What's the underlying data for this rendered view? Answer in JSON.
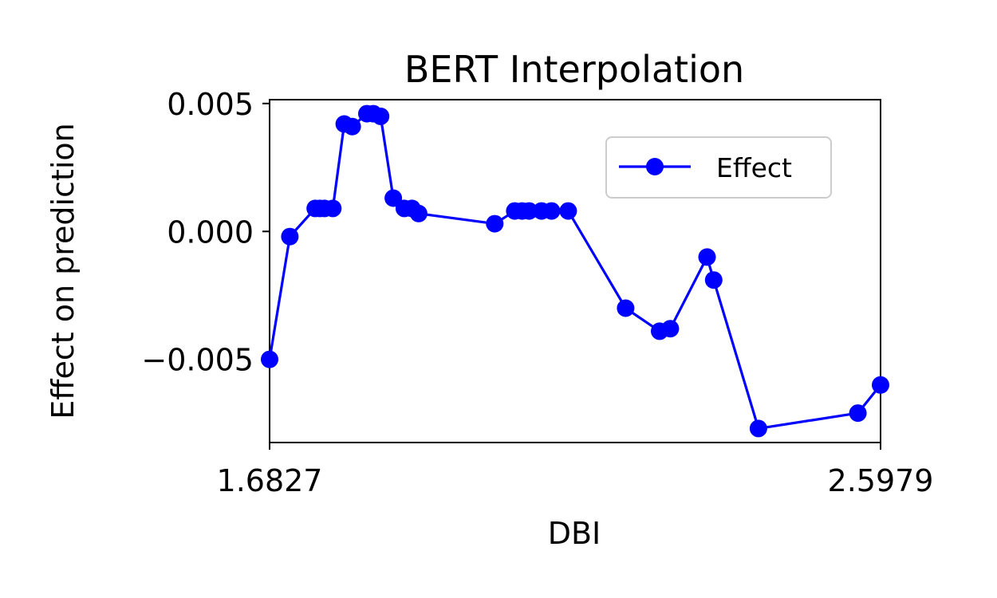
{
  "chart_data": {
    "type": "line",
    "title": "BERT Interpolation",
    "xlabel": "DBI",
    "ylabel": "Effect on prediction",
    "xlim": [
      1.6827,
      2.5979
    ],
    "ylim": [
      -0.00825,
      0.00515
    ],
    "x_ticks": [
      1.6827,
      2.5979
    ],
    "x_tick_labels": [
      "1.6827",
      "2.5979"
    ],
    "y_ticks": [
      -0.005,
      0.0,
      0.005
    ],
    "y_tick_labels": [
      "−0.005",
      "0.000",
      "0.005"
    ],
    "grid": false,
    "legend": {
      "position": "upper right",
      "entries": [
        "Effect"
      ]
    },
    "color": "#0000ff",
    "series": [
      {
        "name": "Effect",
        "points": [
          [
            1.6827,
            -0.005
          ],
          [
            1.713,
            -0.0002
          ],
          [
            1.751,
            0.0009
          ],
          [
            1.758,
            0.0009
          ],
          [
            1.765,
            0.0009
          ],
          [
            1.7775,
            0.0009
          ],
          [
            1.7945,
            0.0042
          ],
          [
            1.8065,
            0.0041
          ],
          [
            1.8285,
            0.0046
          ],
          [
            1.838,
            0.0046
          ],
          [
            1.849,
            0.0045
          ],
          [
            1.868,
            0.0013
          ],
          [
            1.8845,
            0.0009
          ],
          [
            1.896,
            0.0009
          ],
          [
            1.906,
            0.0007
          ],
          [
            2.02,
            0.0003
          ],
          [
            2.05,
            0.0008
          ],
          [
            2.061,
            0.0008
          ],
          [
            2.0715,
            0.0008
          ],
          [
            2.09,
            0.0008
          ],
          [
            2.105,
            0.0008
          ],
          [
            2.13,
            0.0008
          ],
          [
            2.216,
            -0.003
          ],
          [
            2.267,
            -0.0039
          ],
          [
            2.283,
            -0.0038
          ],
          [
            2.338,
            -0.001
          ],
          [
            2.348,
            -0.0019
          ],
          [
            2.415,
            -0.0077
          ],
          [
            2.564,
            -0.0071
          ],
          [
            2.5979,
            -0.006
          ]
        ]
      }
    ]
  }
}
